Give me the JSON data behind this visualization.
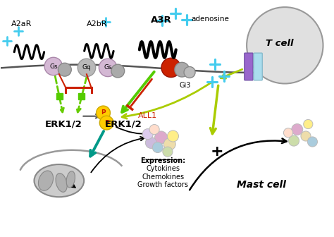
{
  "bg_color": "#ffffff",
  "receptor_labels": [
    "A2aR",
    "A2bR",
    "A3R"
  ],
  "adenosine_label": "adenosine",
  "all1_label": "ALL1",
  "erk_label1": "ERK1/2",
  "erk_label2": "ERK1/2",
  "tcell_label": "T cell",
  "mastcell_label": "Mast cell",
  "expression_lines": [
    "Expression:",
    "Cytokines",
    "Chemokines",
    "Growth factors"
  ],
  "plus_label": "+",
  "p_label": "P",
  "colors": {
    "receptor_coil_a2ar": "#111111",
    "receptor_coil_a3r": "#000000",
    "gs_protein": "#d4b8d4",
    "gq_protein": "#b8b8b8",
    "gi3_red": "#cc2200",
    "gi3_gray1": "#aaaaaa",
    "gi3_gray2": "#bbbbbb",
    "adenosine_cross": "#44ccee",
    "green_arrow": "#55cc00",
    "green_dashed": "#66cc00",
    "yellow_green_arrow": "#aacc00",
    "red_inhibit": "#cc2200",
    "teal_arrow": "#009988",
    "tcell_circle": "#e0e0e0",
    "tcell_receptor_purple": "#9966cc",
    "tcell_receptor_blue": "#aaddee",
    "p_circle": "#ffcc00",
    "p_text": "#cc2200",
    "nucleus_fill": "#cccccc",
    "dna_color": "#999999",
    "green_diamond": "#55cc00",
    "membrane": "#555555"
  }
}
